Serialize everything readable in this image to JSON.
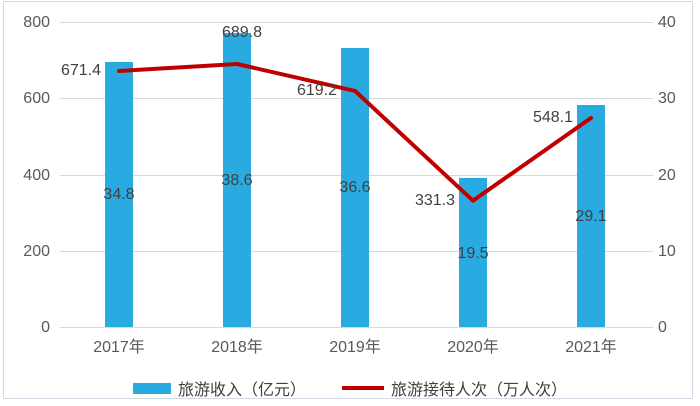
{
  "chart_data": {
    "type": "bar+line",
    "title": "",
    "categories": [
      "2017年",
      "2018年",
      "2019年",
      "2020年",
      "2021年"
    ],
    "series": [
      {
        "name": "旅游收入（亿元）",
        "type": "bar",
        "axis": "right",
        "color": "#29abe2",
        "values": [
          34.8,
          38.6,
          36.6,
          19.5,
          29.1
        ],
        "labels": [
          "34.8",
          "38.6",
          "36.6",
          "19.5",
          "29.1"
        ]
      },
      {
        "name": "旅游接待人次（万人次）",
        "type": "line",
        "axis": "left",
        "color": "#c00000",
        "values": [
          671.4,
          689.8,
          619.2,
          331.3,
          548.1
        ],
        "labels": [
          "671.4",
          "689.8",
          "619.2",
          "331.3",
          "548.1"
        ]
      }
    ],
    "left_axis": {
      "min": 0,
      "max": 800,
      "ticks": [
        0,
        200,
        400,
        600,
        800
      ]
    },
    "right_axis": {
      "min": 0,
      "max": 40,
      "ticks": [
        0,
        10,
        20,
        30,
        40
      ]
    },
    "grid": true,
    "data_labels": true,
    "legend_position": "bottom"
  },
  "colors": {
    "grid": "#d9d9d9",
    "axis_text": "#595959",
    "label_text": "#404040",
    "frame_border": "#cfdbe6",
    "background": "#ffffff"
  }
}
